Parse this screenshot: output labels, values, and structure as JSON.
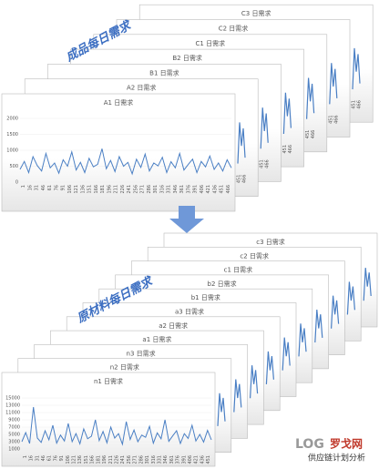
{
  "top": {
    "label": "成品每日需求",
    "cards": [
      "A1 日需求",
      "A2 日需求",
      "B1 日需求",
      "B2 日需求",
      "C1 日需求",
      "C2 日需求",
      "C3 日需求"
    ],
    "edge_labels": [
      "451",
      "466"
    ],
    "chart": {
      "ylim": [
        0,
        2000
      ],
      "yticks": [
        0,
        500,
        1000,
        1500,
        2000
      ],
      "xticks": [
        "1",
        "16",
        "31",
        "46",
        "61",
        "76",
        "91",
        "106",
        "121",
        "136",
        "151",
        "166",
        "181",
        "196",
        "211",
        "226",
        "241",
        "256",
        "271",
        "286",
        "301",
        "316",
        "331",
        "346",
        "361",
        "376",
        "391",
        "406",
        "421",
        "436",
        "451",
        "466"
      ],
      "values": [
        400,
        650,
        300,
        800,
        520,
        350,
        900,
        450,
        600,
        280,
        700,
        500,
        950,
        380,
        620,
        300,
        750,
        480,
        560,
        1050,
        420,
        680,
        330,
        800,
        500,
        620,
        260,
        720,
        460,
        880,
        350,
        600,
        510,
        780,
        300,
        640,
        450,
        900,
        380,
        560,
        720,
        300,
        650,
        480,
        820,
        400,
        600,
        350,
        700,
        450
      ]
    }
  },
  "bottom": {
    "label": "原材料每日需求",
    "cards": [
      "n1 日需求",
      "n2 日需求",
      "n3 日需求",
      "a1 日需求",
      "a2 日需求",
      "a3 日需求",
      "b1 日需求",
      "b2 日需求",
      "c1 日需求",
      "c2 日需求",
      "c3 日需求"
    ],
    "chart": {
      "ylim": [
        0,
        16000
      ],
      "yticks": [
        1000,
        3000,
        5000,
        7000,
        9000,
        11000,
        13000,
        15000
      ],
      "xticks": [
        "1",
        "16",
        "31",
        "46",
        "61",
        "76",
        "91",
        "106",
        "121",
        "136",
        "151",
        "166",
        "181",
        "196",
        "211",
        "226",
        "241",
        "256",
        "271",
        "286",
        "301",
        "316",
        "331",
        "346",
        "361",
        "376",
        "391",
        "406",
        "421",
        "436",
        "451"
      ],
      "values": [
        3000,
        5500,
        2500,
        12500,
        4000,
        2800,
        6000,
        3500,
        7500,
        2600,
        4800,
        3200,
        8000,
        3000,
        5200,
        2400,
        6500,
        3800,
        4500,
        9000,
        3300,
        5800,
        2700,
        7000,
        4000,
        5200,
        2300,
        8500,
        3600,
        6200,
        3000,
        4800,
        4200,
        7200,
        2600,
        5400,
        3800,
        9000,
        3100,
        4600,
        6000,
        2500,
        5200,
        3900,
        7500,
        3200,
        5000,
        2900,
        6100,
        3500
      ]
    }
  },
  "logo": {
    "brand_latin": "LOG",
    "brand": "罗戈网",
    "subtitle": "供应链计划分析"
  }
}
